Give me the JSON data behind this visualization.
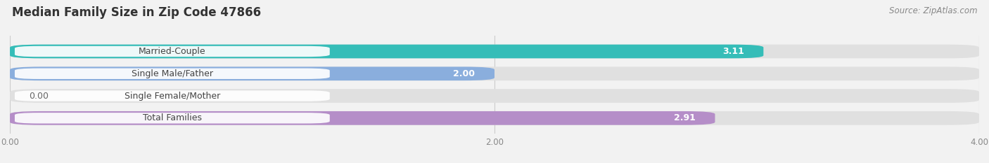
{
  "title": "Median Family Size in Zip Code 47866",
  "source": "Source: ZipAtlas.com",
  "categories": [
    "Married-Couple",
    "Single Male/Father",
    "Single Female/Mother",
    "Total Families"
  ],
  "values": [
    3.11,
    2.0,
    0.0,
    2.91
  ],
  "bar_colors": [
    "#35bdb8",
    "#8aaedd",
    "#f4a8bb",
    "#b58ec8"
  ],
  "xlim": [
    0,
    4.0
  ],
  "xticks": [
    0.0,
    2.0,
    4.0
  ],
  "xticklabels": [
    "0.00",
    "2.00",
    "4.00"
  ],
  "bar_height": 0.62,
  "background_color": "#f2f2f2",
  "bar_bg_color": "#e0e0e0",
  "title_fontsize": 12,
  "source_fontsize": 8.5,
  "label_fontsize": 9,
  "value_fontsize": 9
}
